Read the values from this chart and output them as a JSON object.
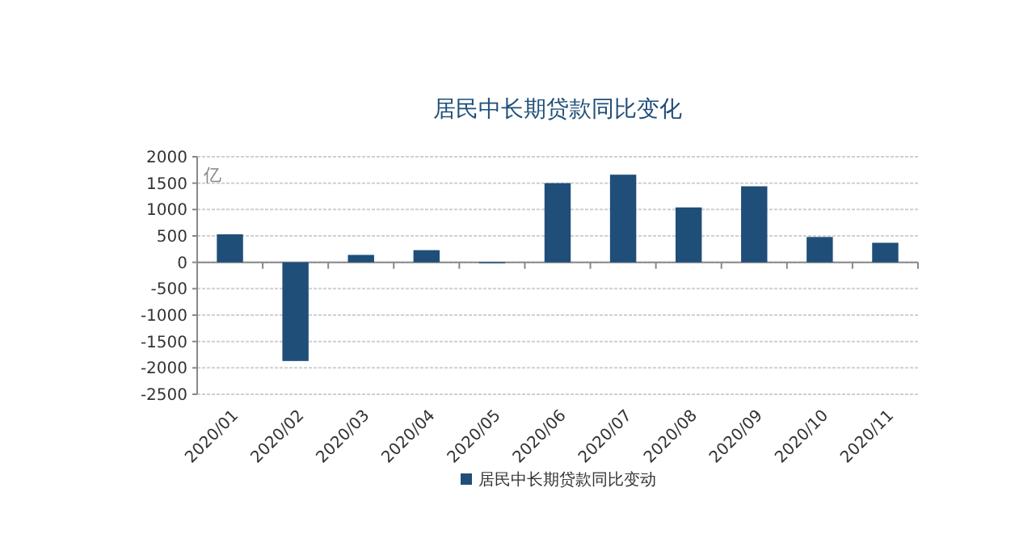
{
  "chart_data": {
    "type": "bar",
    "title": "居民中长期贷款同比变化",
    "ylabel": "亿",
    "categories": [
      "2020/01",
      "2020/02",
      "2020/03",
      "2020/04",
      "2020/05",
      "2020/06",
      "2020/07",
      "2020/08",
      "2020/09",
      "2020/10",
      "2020/11"
    ],
    "series": [
      {
        "name": "居民中长期贷款同比变动",
        "color": "#1f4e79",
        "values": [
          530,
          -1870,
          140,
          230,
          -20,
          1500,
          1660,
          1040,
          1440,
          480,
          370
        ]
      }
    ],
    "ylim": [
      -2500,
      2000
    ],
    "yticks": [
      -2500,
      -2000,
      -1500,
      -1000,
      -500,
      0,
      500,
      1000,
      1500,
      2000
    ],
    "grid": "y",
    "legend": "bottom"
  }
}
